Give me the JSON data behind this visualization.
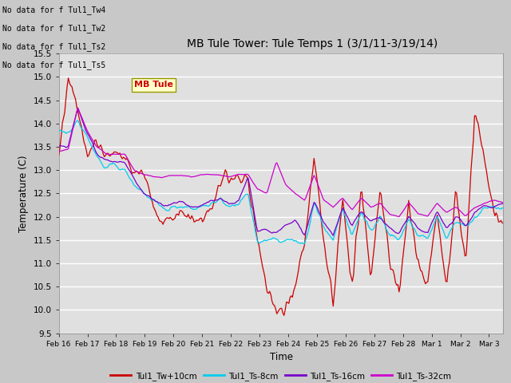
{
  "title": "MB Tule Tower: Tule Temps 1 (3/1/11-3/19/14)",
  "xlabel": "Time",
  "ylabel": "Temperature (C)",
  "ylim": [
    9.5,
    15.5
  ],
  "series_colors": {
    "Tw": "#cc0000",
    "Ts8": "#00ccee",
    "Ts16": "#7700cc",
    "Ts32": "#cc00cc"
  },
  "legend_labels": [
    "Tul1_Tw+10cm",
    "Tul1_Ts-8cm",
    "Tul1_Ts-16cm",
    "Tul1_Ts-32cm"
  ],
  "legend_colors": [
    "#cc0000",
    "#00ccee",
    "#7700cc",
    "#cc00cc"
  ],
  "xtick_labels": [
    "Feb 16",
    "Feb 17",
    "Feb 18",
    "Feb 19",
    "Feb 20",
    "Feb 21",
    "Feb 22",
    "Feb 23",
    "Feb 24",
    "Feb 25",
    "Feb 26",
    "Feb 27",
    "Feb 28",
    "Mar 1",
    "Mar 2",
    "Mar 3"
  ],
  "annotations": [
    "No data for f Tul1_Tw4",
    "No data for f Tul1_Tw2",
    "No data for f Tul1_Ts2",
    "No data for f Tul1_Ts5"
  ],
  "tooltip_text": "MB Tule",
  "fig_bg": "#c8c8c8",
  "plot_bg": "#e0e0e0",
  "grid_color": "#ffffff"
}
